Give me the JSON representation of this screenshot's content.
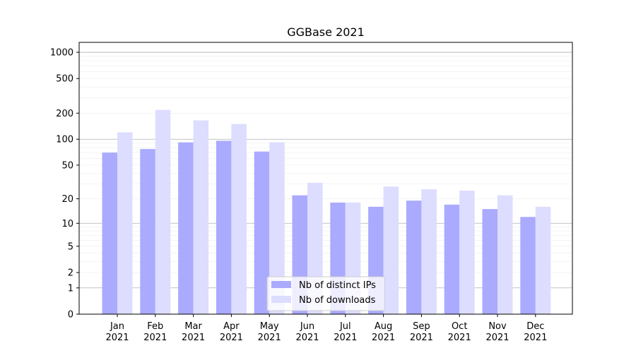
{
  "chart_data": {
    "type": "bar",
    "title": "GGBase 2021",
    "xlabel": "",
    "ylabel": "",
    "yscale": "symlog",
    "ylim": [
      0,
      1300
    ],
    "yticks": [
      0,
      1,
      2,
      5,
      10,
      20,
      50,
      100,
      200,
      500,
      1000
    ],
    "grid": true,
    "legend_position": "bottom-center",
    "categories": [
      {
        "month": "Jan",
        "year": "2021"
      },
      {
        "month": "Feb",
        "year": "2021"
      },
      {
        "month": "Mar",
        "year": "2021"
      },
      {
        "month": "Apr",
        "year": "2021"
      },
      {
        "month": "May",
        "year": "2021"
      },
      {
        "month": "Jun",
        "year": "2021"
      },
      {
        "month": "Jul",
        "year": "2021"
      },
      {
        "month": "Aug",
        "year": "2021"
      },
      {
        "month": "Sep",
        "year": "2021"
      },
      {
        "month": "Oct",
        "year": "2021"
      },
      {
        "month": "Nov",
        "year": "2021"
      },
      {
        "month": "Dec",
        "year": "2021"
      }
    ],
    "series": [
      {
        "name": "Nb of distinct IPs",
        "color": "#aaaaff",
        "values": [
          70,
          77,
          92,
          96,
          72,
          22,
          18,
          16,
          19,
          17,
          15,
          12
        ]
      },
      {
        "name": "Nb of downloads",
        "color": "#ddddff",
        "values": [
          120,
          218,
          165,
          150,
          92,
          31,
          18,
          28,
          26,
          25,
          22,
          16
        ]
      }
    ]
  }
}
